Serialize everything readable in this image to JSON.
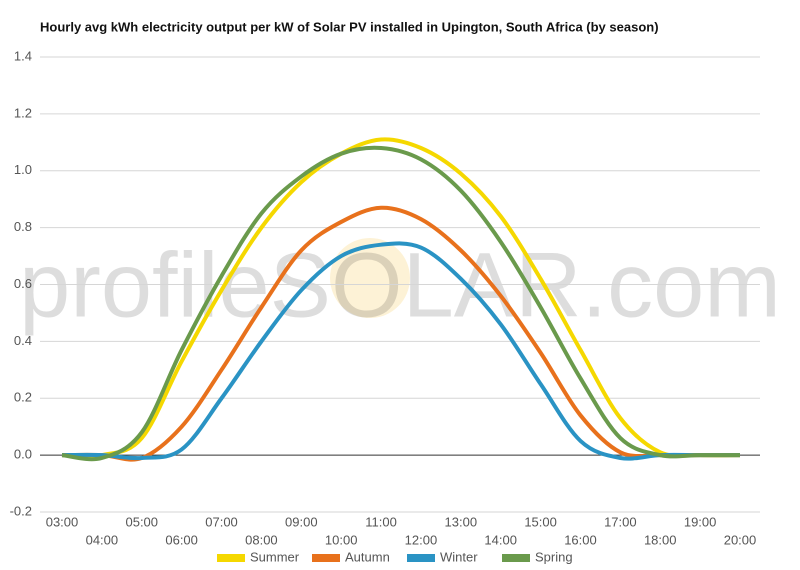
{
  "chart_data": {
    "type": "line",
    "title": "Hourly avg kWh electricity output per kW of Solar PV installed in Upington, South Africa (by season)",
    "watermark": "profileSOLAR.com",
    "categories": [
      "03:00",
      "04:00",
      "05:00",
      "06:00",
      "07:00",
      "08:00",
      "09:00",
      "10:00",
      "11:00",
      "12:00",
      "13:00",
      "14:00",
      "15:00",
      "16:00",
      "17:00",
      "18:00",
      "19:00",
      "20:00"
    ],
    "series": [
      {
        "name": "Summer",
        "color": "#f5d800",
        "values": [
          0,
          0,
          0.06,
          0.33,
          0.58,
          0.8,
          0.96,
          1.06,
          1.11,
          1.08,
          0.99,
          0.84,
          0.62,
          0.37,
          0.13,
          0.01,
          0,
          0
        ]
      },
      {
        "name": "Autumn",
        "color": "#e8711c",
        "values": [
          0,
          0,
          -0.01,
          0.1,
          0.3,
          0.52,
          0.72,
          0.82,
          0.87,
          0.83,
          0.72,
          0.56,
          0.36,
          0.14,
          0.01,
          0,
          0,
          0
        ]
      },
      {
        "name": "Winter",
        "color": "#2a93c4",
        "values": [
          0,
          0,
          -0.01,
          0.02,
          0.2,
          0.4,
          0.58,
          0.7,
          0.74,
          0.73,
          0.62,
          0.46,
          0.25,
          0.05,
          -0.01,
          0,
          0,
          0
        ]
      },
      {
        "name": "Spring",
        "color": "#6a9a4c",
        "values": [
          0,
          -0.01,
          0.08,
          0.37,
          0.63,
          0.85,
          0.98,
          1.06,
          1.08,
          1.04,
          0.93,
          0.75,
          0.52,
          0.27,
          0.06,
          0,
          0,
          0
        ]
      }
    ],
    "ylim": [
      -0.2,
      1.4
    ],
    "yticks": [
      -0.2,
      {
        "value": 0,
        "label": "0.0"
      },
      0.2,
      0.4,
      0.6,
      0.8,
      {
        "value": 1,
        "label": "1.0"
      },
      1.2,
      1.4
    ],
    "grid": true
  }
}
